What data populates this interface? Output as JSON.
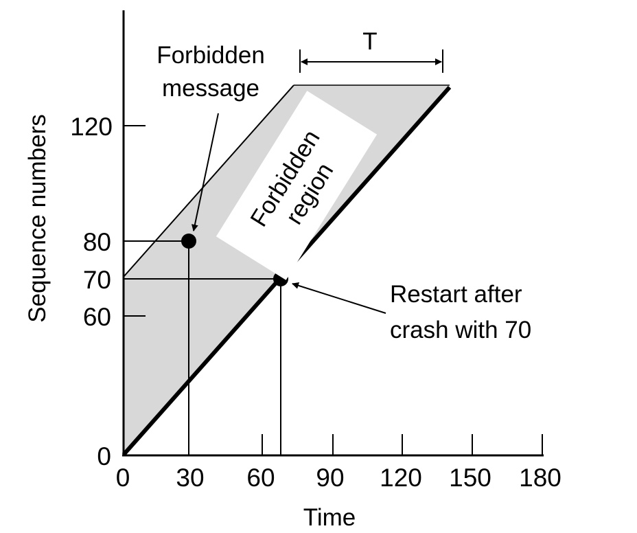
{
  "colors": {
    "region_fill": "#d8d8d8",
    "ink": "#000000",
    "label_box": "#ffffff"
  },
  "axes": {
    "x_label": "Time",
    "y_label": "Sequence numbers",
    "x_ticks": [
      "0",
      "30",
      "60",
      "90",
      "120",
      "150",
      "180"
    ],
    "y_ticks": [
      "0",
      "60",
      "70",
      "80",
      "120"
    ]
  },
  "annotations": {
    "forbidden_message_line1": "Forbidden",
    "forbidden_message_line2": "message",
    "region_label_line1": "Forbidden",
    "region_label_line2": "region",
    "restart_line1": "Restart after",
    "restart_line2": "crash with 70",
    "interval_label": "T"
  },
  "points": {
    "forbidden_message": {
      "time": 30,
      "sequence": 80
    },
    "restart": {
      "time": 68,
      "sequence": 70
    }
  }
}
